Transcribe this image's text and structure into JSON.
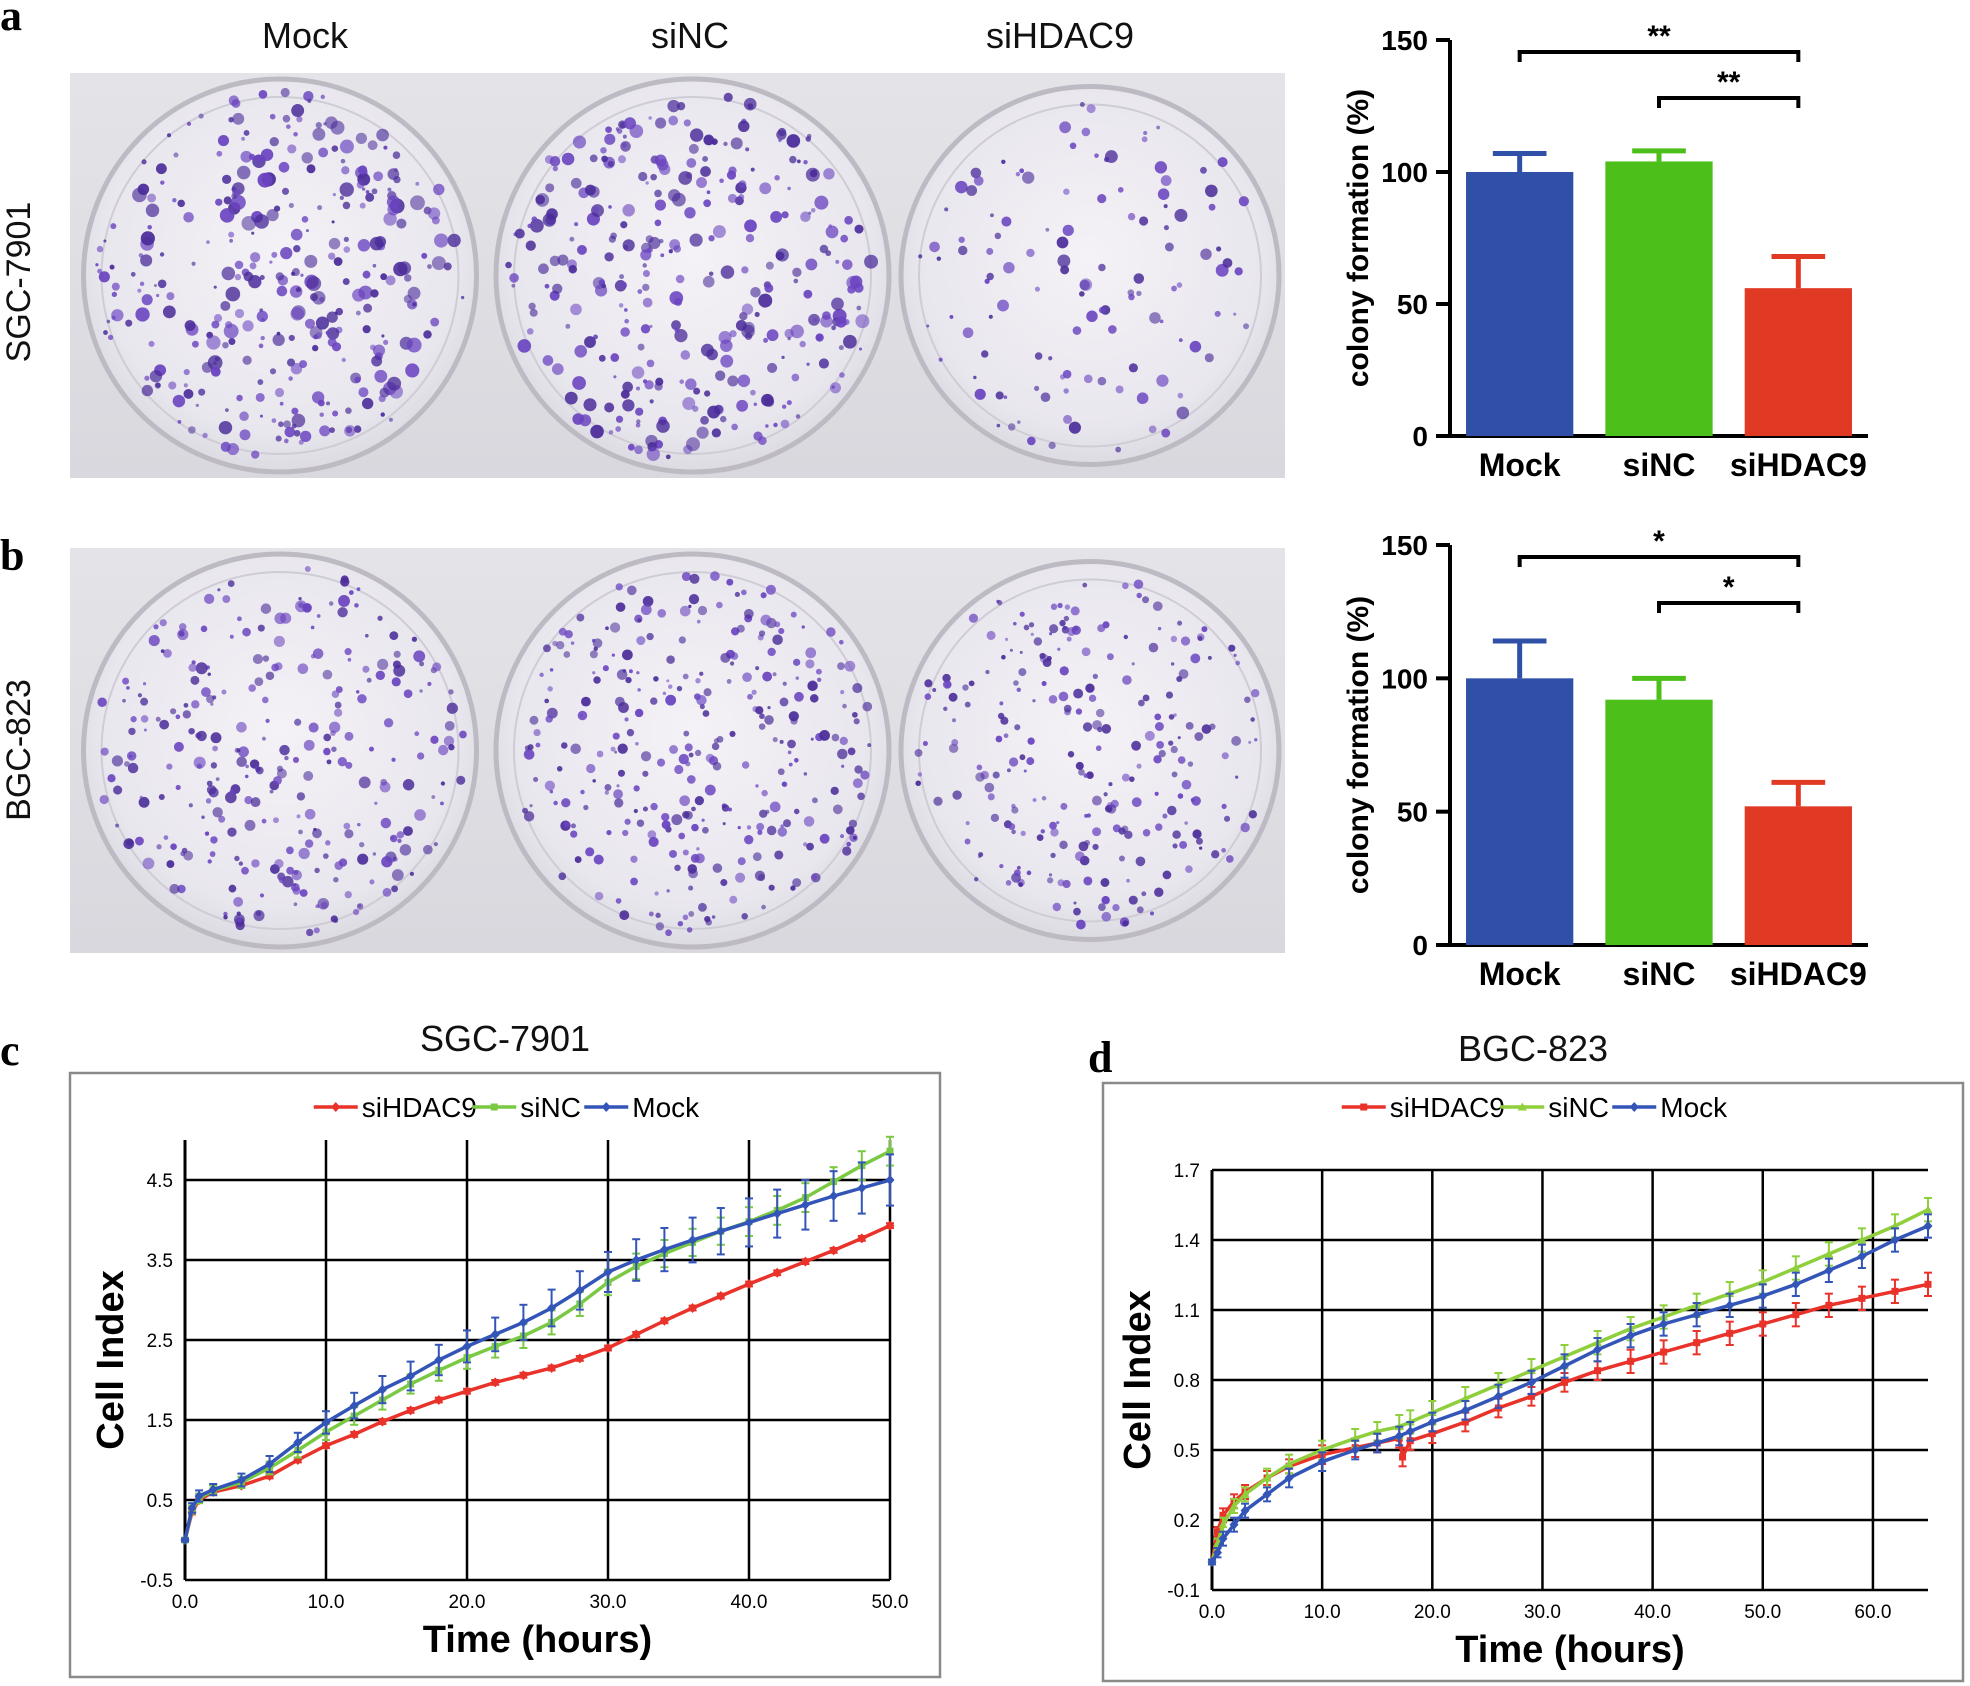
{
  "panels": {
    "a": {
      "letter": "a",
      "row_label": "SGC-7901",
      "column_labels": [
        "Mock",
        "siNC",
        "siHDAC9"
      ]
    },
    "b": {
      "letter": "b",
      "row_label": "BGC-823"
    },
    "c": {
      "letter": "c"
    },
    "d": {
      "letter": "d"
    }
  },
  "chart_data": [
    {
      "id": "bar-a",
      "type": "bar",
      "title": "",
      "xlabel": "",
      "ylabel": "colony formation (%)",
      "ylim": [
        0,
        150
      ],
      "yticks": [
        0,
        50,
        100,
        150
      ],
      "categories": [
        "Mock",
        "siNC",
        "siHDAC9"
      ],
      "values": [
        100,
        104,
        56
      ],
      "errors": [
        7,
        4,
        12
      ],
      "colors": [
        "#3050a8",
        "#4cbf1a",
        "#e03a24"
      ],
      "significance": [
        {
          "from": "Mock",
          "to": "siHDAC9",
          "label": "**"
        },
        {
          "from": "siNC",
          "to": "siHDAC9",
          "label": "**"
        }
      ]
    },
    {
      "id": "bar-b",
      "type": "bar",
      "title": "",
      "xlabel": "",
      "ylabel": "colony formation (%)",
      "ylim": [
        0,
        150
      ],
      "yticks": [
        0,
        50,
        100,
        150
      ],
      "categories": [
        "Mock",
        "siNC",
        "siHDAC9"
      ],
      "values": [
        100,
        92,
        52
      ],
      "errors": [
        14,
        8,
        9
      ],
      "colors": [
        "#3050a8",
        "#4cbf1a",
        "#e03a24"
      ],
      "significance": [
        {
          "from": "Mock",
          "to": "siHDAC9",
          "label": "*"
        },
        {
          "from": "siNC",
          "to": "siHDAC9",
          "label": "*"
        }
      ]
    },
    {
      "id": "line-c",
      "type": "line",
      "title": "SGC-7901",
      "xlabel": "Time (hours)",
      "ylabel": "Cell Index",
      "xlim": [
        0,
        50
      ],
      "ylim": [
        -0.5,
        5
      ],
      "xticks": [
        "0.0",
        "10.0",
        "20.0",
        "30.0",
        "40.0",
        "50.0"
      ],
      "yticks": [
        "-0.5",
        "0.5",
        "1.5",
        "2.5",
        "3.5",
        "4.5"
      ],
      "grid": true,
      "legend": "top",
      "series": [
        {
          "name": "siHDAC9",
          "color": "#e8322a",
          "marker": "diamond",
          "x": [
            0,
            0.5,
            1,
            2,
            4,
            6,
            8,
            10,
            12,
            14,
            16,
            18,
            20,
            22,
            24,
            26,
            28,
            30,
            32,
            34,
            36,
            38,
            40,
            42,
            44,
            46,
            48,
            50
          ],
          "y": [
            0,
            0.35,
            0.5,
            0.6,
            0.68,
            0.8,
            1.0,
            1.18,
            1.32,
            1.48,
            1.62,
            1.75,
            1.86,
            1.97,
            2.06,
            2.15,
            2.27,
            2.4,
            2.57,
            2.74,
            2.9,
            3.05,
            3.2,
            3.34,
            3.48,
            3.62,
            3.77,
            3.93
          ],
          "err": [
            0.02,
            0.03,
            0.03,
            0.03,
            0.03,
            0.03,
            0.03,
            0.03,
            0.03,
            0.03,
            0.03,
            0.03,
            0.03,
            0.03,
            0.03,
            0.03,
            0.03,
            0.03,
            0.03,
            0.03,
            0.03,
            0.03,
            0.03,
            0.03,
            0.03,
            0.03,
            0.03,
            0.03
          ]
        },
        {
          "name": "siNC",
          "color": "#7ac943",
          "marker": "square",
          "x": [
            0,
            0.5,
            1,
            2,
            4,
            6,
            8,
            10,
            12,
            14,
            16,
            18,
            20,
            22,
            24,
            26,
            28,
            30,
            32,
            34,
            36,
            38,
            40,
            42,
            44,
            46,
            48,
            50
          ],
          "y": [
            0,
            0.38,
            0.52,
            0.62,
            0.72,
            0.9,
            1.12,
            1.35,
            1.55,
            1.75,
            1.95,
            2.12,
            2.28,
            2.42,
            2.55,
            2.72,
            2.95,
            3.22,
            3.42,
            3.58,
            3.72,
            3.86,
            3.98,
            4.12,
            4.28,
            4.48,
            4.68,
            4.86
          ],
          "err": [
            0.02,
            0.05,
            0.06,
            0.06,
            0.07,
            0.08,
            0.09,
            0.1,
            0.11,
            0.12,
            0.12,
            0.13,
            0.14,
            0.14,
            0.15,
            0.15,
            0.15,
            0.16,
            0.16,
            0.17,
            0.17,
            0.17,
            0.18,
            0.18,
            0.18,
            0.18,
            0.18,
            0.18
          ]
        },
        {
          "name": "Mock",
          "color": "#3355b8",
          "marker": "diamond",
          "x": [
            0,
            0.5,
            1,
            2,
            4,
            6,
            8,
            10,
            12,
            14,
            16,
            18,
            20,
            22,
            24,
            26,
            28,
            30,
            32,
            34,
            36,
            38,
            40,
            42,
            44,
            46,
            48,
            50
          ],
          "y": [
            0,
            0.4,
            0.55,
            0.63,
            0.75,
            0.95,
            1.22,
            1.47,
            1.68,
            1.88,
            2.05,
            2.25,
            2.42,
            2.57,
            2.72,
            2.9,
            3.12,
            3.35,
            3.5,
            3.63,
            3.75,
            3.86,
            3.97,
            4.08,
            4.19,
            4.3,
            4.4,
            4.5
          ],
          "err": [
            0.02,
            0.06,
            0.07,
            0.07,
            0.08,
            0.1,
            0.12,
            0.14,
            0.16,
            0.17,
            0.18,
            0.19,
            0.2,
            0.21,
            0.22,
            0.23,
            0.24,
            0.25,
            0.26,
            0.27,
            0.28,
            0.29,
            0.3,
            0.3,
            0.31,
            0.31,
            0.32,
            0.32
          ]
        }
      ]
    },
    {
      "id": "line-d",
      "type": "line",
      "title": "BGC-823",
      "xlabel": "Time (hours)",
      "ylabel": "Cell Index",
      "xlim": [
        0,
        65
      ],
      "ylim": [
        -0.1,
        1.7
      ],
      "xticks": [
        "0.0",
        "10.0",
        "20.0",
        "30.0",
        "40.0",
        "50.0",
        "60.0"
      ],
      "yticks": [
        "-0.1",
        "0.2",
        "0.5",
        "0.8",
        "1.1",
        "1.4",
        "1.7"
      ],
      "grid": true,
      "legend": "top",
      "series": [
        {
          "name": "siHDAC9",
          "color": "#e8322a",
          "marker": "square",
          "x": [
            0,
            0.5,
            1,
            2,
            3,
            5,
            7,
            10,
            13,
            15,
            17,
            17.3,
            18,
            20,
            23,
            26,
            29,
            32,
            35,
            38,
            41,
            44,
            47,
            50,
            53,
            56,
            59,
            62,
            65
          ],
          "y": [
            0.02,
            0.15,
            0.22,
            0.28,
            0.32,
            0.38,
            0.43,
            0.48,
            0.51,
            0.53,
            0.55,
            0.47,
            0.54,
            0.57,
            0.62,
            0.68,
            0.73,
            0.79,
            0.84,
            0.88,
            0.92,
            0.96,
            1.0,
            1.04,
            1.08,
            1.12,
            1.15,
            1.18,
            1.21
          ],
          "err": [
            0.01,
            0.02,
            0.03,
            0.03,
            0.03,
            0.03,
            0.03,
            0.04,
            0.04,
            0.04,
            0.04,
            0.04,
            0.04,
            0.04,
            0.04,
            0.04,
            0.04,
            0.04,
            0.04,
            0.05,
            0.05,
            0.05,
            0.05,
            0.05,
            0.05,
            0.05,
            0.05,
            0.05,
            0.05
          ]
        },
        {
          "name": "siNC",
          "color": "#8fcf3c",
          "marker": "triangle",
          "x": [
            0,
            0.5,
            1,
            2,
            3,
            5,
            7,
            10,
            13,
            15,
            17,
            18,
            20,
            23,
            26,
            29,
            32,
            35,
            38,
            41,
            44,
            47,
            50,
            53,
            56,
            59,
            62,
            65
          ],
          "y": [
            0.02,
            0.1,
            0.18,
            0.26,
            0.31,
            0.38,
            0.44,
            0.5,
            0.55,
            0.58,
            0.6,
            0.62,
            0.66,
            0.72,
            0.78,
            0.84,
            0.9,
            0.96,
            1.02,
            1.07,
            1.12,
            1.17,
            1.22,
            1.28,
            1.34,
            1.4,
            1.46,
            1.53
          ],
          "err": [
            0.01,
            0.02,
            0.03,
            0.03,
            0.03,
            0.04,
            0.04,
            0.04,
            0.04,
            0.04,
            0.05,
            0.05,
            0.05,
            0.05,
            0.05,
            0.05,
            0.05,
            0.05,
            0.05,
            0.05,
            0.05,
            0.05,
            0.05,
            0.05,
            0.05,
            0.05,
            0.05,
            0.05
          ]
        },
        {
          "name": "Mock",
          "color": "#3355b8",
          "marker": "diamond",
          "x": [
            0,
            0.5,
            1,
            2,
            3,
            5,
            7,
            10,
            13,
            15,
            17,
            18,
            20,
            23,
            26,
            29,
            32,
            35,
            38,
            41,
            44,
            47,
            50,
            53,
            56,
            59,
            62,
            65
          ],
          "y": [
            0.02,
            0.06,
            0.12,
            0.18,
            0.24,
            0.31,
            0.38,
            0.45,
            0.5,
            0.53,
            0.56,
            0.58,
            0.62,
            0.67,
            0.73,
            0.79,
            0.86,
            0.93,
            0.99,
            1.04,
            1.08,
            1.12,
            1.16,
            1.21,
            1.27,
            1.33,
            1.4,
            1.46
          ],
          "err": [
            0.01,
            0.02,
            0.03,
            0.03,
            0.03,
            0.03,
            0.04,
            0.04,
            0.04,
            0.04,
            0.04,
            0.04,
            0.04,
            0.04,
            0.05,
            0.05,
            0.05,
            0.05,
            0.05,
            0.05,
            0.05,
            0.05,
            0.05,
            0.05,
            0.05,
            0.05,
            0.05,
            0.05
          ]
        }
      ]
    }
  ]
}
